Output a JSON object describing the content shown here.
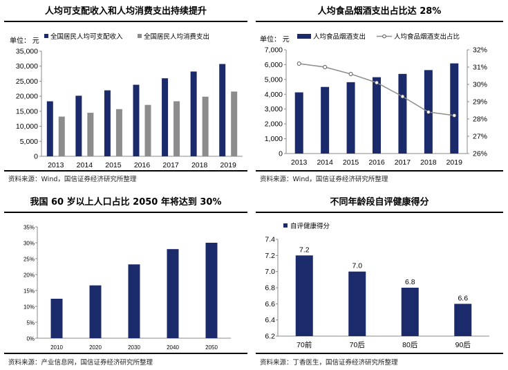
{
  "colors": {
    "navy": "#1b2a6b",
    "gray": "#8c8c8c",
    "line": "#8c8c8c"
  },
  "chart_data": [
    {
      "type": "bar",
      "title": "人均可支配收入和人均消费支出持续提升",
      "unit_label": "单位：  元",
      "source": "资料来源：Wind，国信证券经济研究所整理",
      "categories": [
        "2013",
        "2014",
        "2015",
        "2016",
        "2017",
        "2018",
        "2019"
      ],
      "series": [
        {
          "name": "全国居民人均可支配收入",
          "color": "#1b2a6b",
          "values": [
            18311,
            20167,
            21966,
            23821,
            25974,
            28228,
            30733
          ]
        },
        {
          "name": "全国居民人均消费支出",
          "color": "#8c8c8c",
          "values": [
            13220,
            14491,
            15712,
            17111,
            18322,
            19853,
            21559
          ]
        }
      ],
      "ylim": [
        0,
        35000
      ],
      "yticks": [
        "0",
        "5,000",
        "10,000",
        "15,000",
        "20,000",
        "25,000",
        "30,000",
        "35,000"
      ],
      "legend": "top-left"
    },
    {
      "type": "bar+line",
      "title": "人均食品烟酒支出占比达 28%",
      "unit_label": "单位：  元",
      "source": "资料来源：Wind，国信证券经济研究所整理",
      "categories": [
        "2013",
        "2014",
        "2015",
        "2016",
        "2017",
        "2018",
        "2019"
      ],
      "series": [
        {
          "name": "人均食品烟酒支出",
          "type": "bar",
          "axis": "left",
          "color": "#1b2a6b",
          "values": [
            4127,
            4494,
            4814,
            5151,
            5374,
            5631,
            6084
          ]
        },
        {
          "name": "人均食品烟酒支出占比",
          "type": "line",
          "axis": "right",
          "color": "#8c8c8c",
          "values": [
            31.2,
            31.0,
            30.6,
            30.1,
            29.3,
            28.4,
            28.2
          ]
        }
      ],
      "ylim_left": [
        0,
        7000
      ],
      "yticks_left": [
        "0",
        "1,000",
        "2,000",
        "3,000",
        "4,000",
        "5,000",
        "6,000",
        "7,000"
      ],
      "ylim_right": [
        26,
        32
      ],
      "yticks_right": [
        "26%",
        "27%",
        "28%",
        "29%",
        "30%",
        "31%",
        "32%"
      ],
      "legend": "top"
    },
    {
      "type": "bar",
      "title": "我国 60 岁以上人口占比 2050 年将达到 30%",
      "source": "资料来源：产业信息网，国信证券经济研究所整理",
      "categories": [
        "2010",
        "2020",
        "2030",
        "2040",
        "2050"
      ],
      "series": [
        {
          "color": "#1b2a6b",
          "values": [
            12.4,
            16.6,
            23.2,
            28.0,
            30.0
          ]
        }
      ],
      "ylim": [
        0,
        35
      ],
      "yticks": [
        "0%",
        "5%",
        "10%",
        "15%",
        "20%",
        "25%",
        "30%",
        "35%"
      ]
    },
    {
      "type": "bar",
      "title": "不同年龄段自评健康得分",
      "source": "资料来源：丁香医生，国信证券经济研究所整理",
      "categories": [
        "70前",
        "70后",
        "80后",
        "90后"
      ],
      "series": [
        {
          "name": "自评健康得分",
          "color": "#1b2a6b",
          "values": [
            7.2,
            7.0,
            6.8,
            6.6
          ]
        }
      ],
      "data_labels": [
        "7.2",
        "7.0",
        "6.8",
        "6.6"
      ],
      "ylim": [
        6.2,
        7.4
      ],
      "yticks": [
        "6.2",
        "6.4",
        "6.6",
        "6.8",
        "7.0",
        "7.2",
        "7.4"
      ],
      "legend": "top-left"
    }
  ]
}
